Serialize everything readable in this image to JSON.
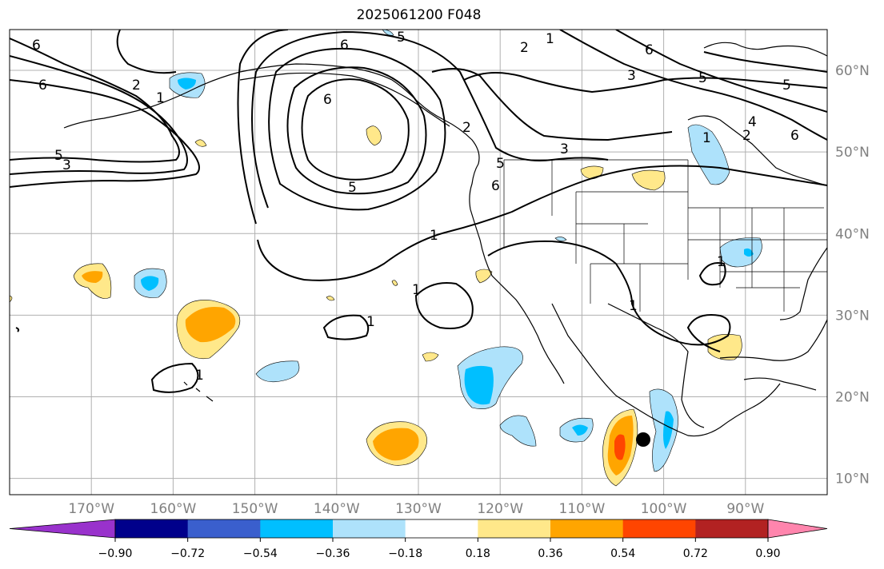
{
  "title": "2025061200 F048",
  "map": {
    "lon_range": [
      -180,
      -80
    ],
    "lat_range": [
      8,
      65
    ],
    "lon_ticks": [
      "170°W",
      "160°W",
      "150°W",
      "140°W",
      "130°W",
      "120°W",
      "110°W",
      "100°W",
      "90°W"
    ],
    "lat_ticks": [
      "10°N",
      "20°N",
      "30°N",
      "40°N",
      "50°N",
      "60°N"
    ],
    "grid": true,
    "coastlines": true,
    "state_borders": true,
    "marker": {
      "lon": -102.5,
      "lat": 14.7,
      "color": "#000000"
    }
  },
  "colorbar": {
    "ticks": [
      "−0.90",
      "−0.72",
      "−0.54",
      "−0.36",
      "−0.18",
      "0.18",
      "0.36",
      "0.54",
      "0.72",
      "0.90"
    ],
    "colors": [
      "#9932cc",
      "#00008b",
      "#3a5fcd",
      "#00bfff",
      "#aee2fb",
      "#ffffff",
      "#ffe88a",
      "#ffa500",
      "#ff4500",
      "#b22222",
      "#ff85ad"
    ],
    "extend": "both"
  },
  "contour_labels": [
    "1",
    "2",
    "3",
    "4",
    "5",
    "6"
  ]
}
